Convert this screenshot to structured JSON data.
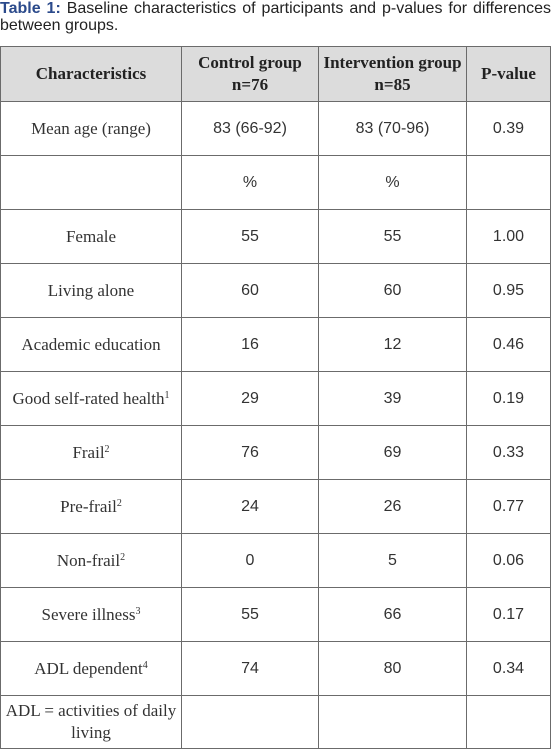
{
  "caption": {
    "label": "Table 1:",
    "text": "Baseline characteristics of participants and p-values for differences between groups."
  },
  "table": {
    "headers": [
      "Characteristics",
      "Control group n=76",
      "Intervention group n=85",
      "P-value"
    ],
    "rows": [
      {
        "char": "Mean age (range)",
        "sup": "",
        "control": "83 (66-92)",
        "intervention": "83 (70-96)",
        "p": "0.39"
      },
      {
        "char": "",
        "sup": "",
        "control": "%",
        "intervention": "%",
        "p": ""
      },
      {
        "char": "Female",
        "sup": "",
        "control": "55",
        "intervention": "55",
        "p": "1.00"
      },
      {
        "char": "Living alone",
        "sup": "",
        "control": "60",
        "intervention": "60",
        "p": "0.95"
      },
      {
        "char": "Academic education",
        "sup": "",
        "control": "16",
        "intervention": "12",
        "p": "0.46"
      },
      {
        "char": "Good self-rated health",
        "sup": "1",
        "control": "29",
        "intervention": "39",
        "p": "0.19"
      },
      {
        "char": "Frail",
        "sup": "2",
        "control": "76",
        "intervention": "69",
        "p": "0.33"
      },
      {
        "char": "Pre-frail",
        "sup": "2",
        "control": "24",
        "intervention": "26",
        "p": "0.77"
      },
      {
        "char": "Non-frail",
        "sup": "2",
        "control": "0",
        "intervention": "5",
        "p": "0.06"
      },
      {
        "char": "Severe illness",
        "sup": "3",
        "control": "55",
        "intervention": "66",
        "p": "0.17"
      },
      {
        "char": "ADL dependent",
        "sup": "4",
        "control": "74",
        "intervention": "80",
        "p": "0.34"
      },
      {
        "char": "ADL = activities of daily living",
        "sup": "",
        "control": "",
        "intervention": "",
        "p": ""
      }
    ]
  }
}
